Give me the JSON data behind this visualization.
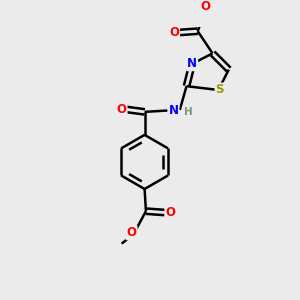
{
  "bg_color": "#ebebeb",
  "bond_color": "#000000",
  "bond_width": 1.8,
  "atom_colors": {
    "O": "#ff0000",
    "N": "#0000ff",
    "S": "#999900",
    "H": "#7a9a7a",
    "C": "#000000"
  },
  "font_size": 8.5,
  "fig_size": [
    3.0,
    3.0
  ],
  "dpi": 100
}
